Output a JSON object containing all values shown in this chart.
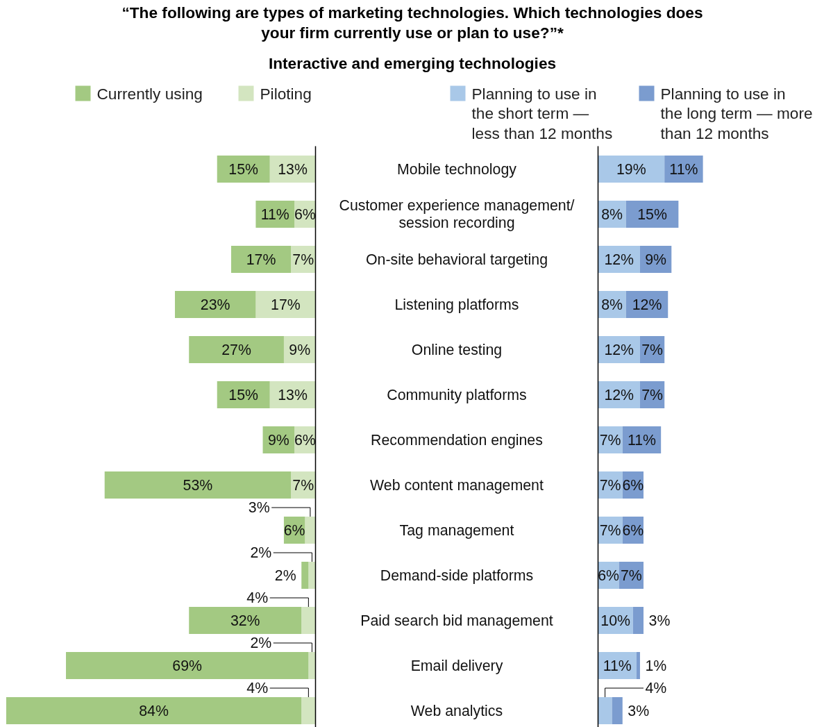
{
  "chart_data": [
    {
      "type": "bar",
      "title": "“The following are types of marketing technologies. Which technologies does your firm currently use or plan to use?”*",
      "subtitle": "Interactive and emerging technologies",
      "orientation": "horizontal",
      "stacked": true,
      "legend": "top",
      "tick_labels": "y",
      "categories": [
        "Mobile technology",
        "Customer experience management/ session recording",
        "On-site behavioral targeting",
        "Listening platforms",
        "Online testing",
        "Community platforms",
        "Recommendation engines",
        "Web content management",
        "Tag management",
        "Demand-side platforms",
        "Paid search bid management",
        "Email delivery",
        "Web analytics"
      ],
      "series": [
        {
          "name": "Piloting",
          "color": "#d3e5c0",
          "values": [
            13,
            6,
            7,
            17,
            9,
            13,
            6,
            7,
            3,
            2,
            4,
            2,
            4
          ],
          "value_labels": [
            "13%",
            "6%",
            "7%",
            "17%",
            "9%",
            "13%",
            "6%",
            "7%",
            "3%",
            "2%",
            "4%",
            "2%",
            "4%"
          ]
        },
        {
          "name": "Currently using",
          "color": "#a3c982",
          "values": [
            15,
            11,
            17,
            23,
            27,
            15,
            9,
            53,
            6,
            2,
            32,
            69,
            84
          ],
          "value_labels": [
            "15%",
            "11%",
            "17%",
            "23%",
            "27%",
            "15%",
            "9%",
            "53%",
            "6%",
            "2%",
            "32%",
            "69%",
            "84%"
          ]
        }
      ]
    },
    {
      "type": "bar",
      "orientation": "horizontal",
      "stacked": true,
      "legend": "top",
      "tick_labels": false,
      "categories": [
        "Mobile technology",
        "Customer experience management/ session recording",
        "On-site behavioral targeting",
        "Listening platforms",
        "Online testing",
        "Community platforms",
        "Recommendation engines",
        "Web content management",
        "Tag management",
        "Demand-side platforms",
        "Paid search bid management",
        "Email delivery",
        "Web analytics"
      ],
      "series": [
        {
          "name": "Planning to use in the short term — less than 12 months",
          "color": "#a9c8e8",
          "values": [
            19,
            8,
            12,
            8,
            12,
            12,
            7,
            7,
            7,
            6,
            10,
            11,
            4
          ],
          "value_labels": [
            "19%",
            "8%",
            "12%",
            "8%",
            "12%",
            "12%",
            "7%",
            "7%",
            "7%",
            "6%",
            "10%",
            "11%",
            "4%"
          ]
        },
        {
          "name": "Planning to use in the long term — more than 12 months",
          "color": "#7b9ccf",
          "values": [
            11,
            15,
            9,
            12,
            7,
            7,
            11,
            6,
            6,
            7,
            3,
            1,
            3
          ],
          "value_labels": [
            "11%",
            "15%",
            "9%",
            "12%",
            "7%",
            "7%",
            "11%",
            "6%",
            "6%",
            "7%",
            "3%",
            "1%",
            "3%"
          ]
        }
      ]
    }
  ]
}
